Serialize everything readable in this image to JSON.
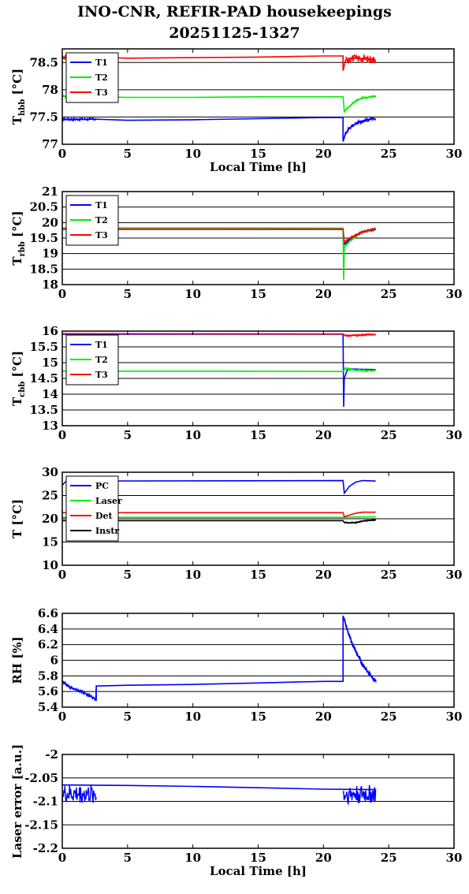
{
  "title": "INO-CNR, REFIR-PAD housekeepings",
  "subtitle": "20251125-1327",
  "chart_data": [
    {
      "type": "line",
      "ylabel": "T",
      "ylabel_sub": "hbb",
      "ylabel_unit": "[°C]",
      "xlabel": "Local Time [h]",
      "xlim": [
        0,
        30
      ],
      "ylim": [
        77,
        78.75
      ],
      "xticks": [
        0,
        5,
        10,
        15,
        20,
        25,
        30
      ],
      "yticks": [
        77,
        77.5,
        78,
        78.5
      ],
      "ytick_labels": [
        "77",
        "77.5",
        "78",
        "78.5"
      ],
      "grid": "y",
      "legend": "top-left",
      "series": [
        {
          "name": "T1",
          "color": "#0000ff",
          "points": [
            [
              0,
              77.46
            ],
            [
              2.6,
              77.46
            ],
            [
              5,
              77.44
            ],
            [
              10,
              77.45
            ],
            [
              15,
              77.47
            ],
            [
              20,
              77.49
            ],
            [
              21.5,
              77.49
            ],
            [
              21.5,
              77.05
            ],
            [
              21.7,
              77.2
            ],
            [
              22,
              77.3
            ],
            [
              22.5,
              77.38
            ],
            [
              23,
              77.43
            ],
            [
              23.5,
              77.46
            ],
            [
              24,
              77.47
            ]
          ],
          "noise": [
            [
              0,
              2.6,
              0.025
            ],
            [
              21.6,
              24,
              0.03
            ]
          ]
        },
        {
          "name": "T2",
          "color": "#00ee00",
          "points": [
            [
              0,
              77.88
            ],
            [
              2.6,
              77.87
            ],
            [
              5,
              77.86
            ],
            [
              10,
              77.86
            ],
            [
              15,
              77.87
            ],
            [
              20,
              77.87
            ],
            [
              21.5,
              77.87
            ],
            [
              21.6,
              77.6
            ],
            [
              22,
              77.7
            ],
            [
              22.5,
              77.8
            ],
            [
              23,
              77.85
            ],
            [
              24,
              77.88
            ]
          ],
          "noise": [
            [
              0,
              2.6,
              0.02
            ],
            [
              21.6,
              24,
              0.02
            ]
          ]
        },
        {
          "name": "T3",
          "color": "#ff0000",
          "points": [
            [
              0,
              78.6
            ],
            [
              2.6,
              78.6
            ],
            [
              5,
              78.58
            ],
            [
              10,
              78.59
            ],
            [
              15,
              78.6
            ],
            [
              20,
              78.62
            ],
            [
              21.5,
              78.62
            ],
            [
              21.5,
              78.35
            ],
            [
              21.7,
              78.55
            ],
            [
              22,
              78.58
            ],
            [
              23,
              78.57
            ],
            [
              24,
              78.55
            ]
          ],
          "noise": [
            [
              0,
              2.6,
              0.04
            ],
            [
              21.7,
              24,
              0.07
            ]
          ]
        }
      ]
    },
    {
      "type": "line",
      "ylabel": "T",
      "ylabel_sub": "rbb",
      "ylabel_unit": "[°C]",
      "xlabel": "",
      "xlim": [
        0,
        30
      ],
      "ylim": [
        18,
        21
      ],
      "xticks": [
        0,
        5,
        10,
        15,
        20,
        25,
        30
      ],
      "yticks": [
        18,
        18.5,
        19,
        19.5,
        20,
        20.5,
        21
      ],
      "ytick_labels": [
        "18",
        "18.5",
        "19",
        "19.5",
        "20",
        "20.5",
        "21"
      ],
      "grid": "y",
      "legend": "top-left",
      "series": [
        {
          "name": "T1",
          "color": "#0000ff",
          "points": [
            [
              0,
              19.78
            ],
            [
              21.5,
              19.78
            ],
            [
              21.6,
              19.3
            ],
            [
              22,
              19.45
            ],
            [
              22.5,
              19.6
            ],
            [
              23,
              19.7
            ],
            [
              24,
              19.78
            ]
          ],
          "noise": [
            [
              21.6,
              24,
              0.03
            ]
          ]
        },
        {
          "name": "T2",
          "color": "#00ee00",
          "points": [
            [
              0,
              19.83
            ],
            [
              12,
              19.83
            ],
            [
              21.5,
              19.82
            ],
            [
              21.55,
              18.15
            ],
            [
              21.6,
              19.2
            ],
            [
              22,
              19.4
            ],
            [
              22.5,
              19.55
            ],
            [
              23,
              19.7
            ],
            [
              24,
              19.82
            ]
          ],
          "noise": [
            [
              21.6,
              24,
              0.03
            ]
          ]
        },
        {
          "name": "T3",
          "color": "#ff0000",
          "points": [
            [
              0,
              19.79
            ],
            [
              21.5,
              19.79
            ],
            [
              21.6,
              19.35
            ],
            [
              22,
              19.5
            ],
            [
              22.5,
              19.6
            ],
            [
              23,
              19.7
            ],
            [
              24,
              19.8
            ]
          ],
          "noise": [
            [
              21.6,
              24,
              0.03
            ]
          ]
        }
      ]
    },
    {
      "type": "line",
      "ylabel": "T",
      "ylabel_sub": "cbb",
      "ylabel_unit": "[°C]",
      "xlabel": "",
      "xlim": [
        0,
        30
      ],
      "ylim": [
        13,
        16
      ],
      "xticks": [
        0,
        5,
        10,
        15,
        20,
        25,
        30
      ],
      "yticks": [
        13,
        13.5,
        14,
        14.5,
        15,
        15.5,
        16
      ],
      "ytick_labels": [
        "13",
        "13.5",
        "14",
        "14.5",
        "15",
        "15.5",
        "16"
      ],
      "grid": "y",
      "legend": "top-left",
      "series": [
        {
          "name": "T1",
          "color": "#0000ff",
          "points": [
            [
              0,
              15.9
            ],
            [
              21.5,
              15.9
            ],
            [
              21.55,
              13.6
            ],
            [
              21.6,
              14.5
            ],
            [
              21.8,
              14.75
            ],
            [
              22,
              14.8
            ],
            [
              24,
              14.78
            ]
          ],
          "noise": []
        },
        {
          "name": "T2",
          "color": "#00ee00",
          "points": [
            [
              0,
              14.73
            ],
            [
              12,
              14.73
            ],
            [
              21.5,
              14.72
            ],
            [
              21.7,
              14.82
            ],
            [
              22,
              14.78
            ],
            [
              23,
              14.75
            ],
            [
              24,
              14.75
            ]
          ],
          "noise": [
            [
              21.6,
              24,
              0.03
            ]
          ]
        },
        {
          "name": "T3",
          "color": "#ff0000",
          "points": [
            [
              0,
              15.92
            ],
            [
              21.5,
              15.91
            ],
            [
              21.7,
              15.85
            ],
            [
              22,
              15.86
            ],
            [
              23,
              15.88
            ],
            [
              24,
              15.9
            ]
          ],
          "noise": [
            [
              21.6,
              24,
              0.03
            ]
          ]
        }
      ]
    },
    {
      "type": "line",
      "ylabel": "T [°C]",
      "ylabel_sub": "",
      "ylabel_unit": "",
      "xlabel": "",
      "xlim": [
        0,
        30
      ],
      "ylim": [
        10,
        30
      ],
      "xticks": [
        0,
        5,
        10,
        15,
        20,
        25,
        30
      ],
      "yticks": [
        10,
        15,
        20,
        25,
        30
      ],
      "ytick_labels": [
        "10",
        "15",
        "20",
        "25",
        "30"
      ],
      "grid": "y",
      "legend": "top-left",
      "series": [
        {
          "name": "PC",
          "color": "#0000ff",
          "points": [
            [
              0,
              27.2
            ],
            [
              0.3,
              28.1
            ],
            [
              21.5,
              28.2
            ],
            [
              21.6,
              25.5
            ],
            [
              22,
              27.0
            ],
            [
              22.5,
              27.9
            ],
            [
              23,
              28.2
            ],
            [
              24,
              28.1
            ]
          ],
          "noise": []
        },
        {
          "name": "Laser",
          "color": "#00ee00",
          "points": [
            [
              0,
              20.3
            ],
            [
              21.5,
              20.3
            ],
            [
              22,
              20.35
            ],
            [
              24,
              20.4
            ]
          ],
          "noise": []
        },
        {
          "name": "Det",
          "color": "#ff0000",
          "points": [
            [
              0,
              21.3
            ],
            [
              21.5,
              21.3
            ],
            [
              21.6,
              20.4
            ],
            [
              22,
              20.8
            ],
            [
              22.5,
              21.2
            ],
            [
              23,
              21.4
            ],
            [
              24,
              21.4
            ]
          ],
          "noise": []
        },
        {
          "name": "Instr",
          "color": "#000000",
          "points": [
            [
              0,
              19.6
            ],
            [
              21.5,
              19.6
            ],
            [
              21.6,
              19.2
            ],
            [
              22,
              19.1
            ],
            [
              22.5,
              19.2
            ],
            [
              23,
              19.5
            ],
            [
              24,
              19.8
            ]
          ],
          "noise": [
            [
              21.6,
              24,
              0.15
            ]
          ]
        }
      ]
    },
    {
      "type": "line",
      "ylabel": "RH [%]",
      "ylabel_sub": "",
      "ylabel_unit": "",
      "xlabel": "",
      "xlim": [
        0,
        30
      ],
      "ylim": [
        5.4,
        6.6
      ],
      "xticks": [
        0,
        5,
        10,
        15,
        20,
        25,
        30
      ],
      "yticks": [
        5.4,
        5.6,
        5.8,
        6,
        6.2,
        6.4,
        6.6
      ],
      "ytick_labels": [
        "5.4",
        "5.6",
        "5.8",
        "6",
        "6.2",
        "6.4",
        "6.6"
      ],
      "grid": "y",
      "legend": "none",
      "series": [
        {
          "name": "",
          "color": "#0000ff",
          "points": [
            [
              0,
              5.73
            ],
            [
              0.5,
              5.66
            ],
            [
              1,
              5.63
            ],
            [
              1.5,
              5.6
            ],
            [
              2,
              5.55
            ],
            [
              2.6,
              5.5
            ],
            [
              2.6,
              5.48
            ],
            [
              2.6,
              5.67
            ],
            [
              5,
              5.68
            ],
            [
              10,
              5.69
            ],
            [
              15,
              5.71
            ],
            [
              20,
              5.73
            ],
            [
              21.5,
              5.73
            ],
            [
              21.5,
              6.57
            ],
            [
              22,
              6.3
            ],
            [
              22.5,
              6.1
            ],
            [
              23,
              5.95
            ],
            [
              23.5,
              5.83
            ],
            [
              24,
              5.73
            ],
            [
              24,
              5.75
            ]
          ],
          "noise": [
            [
              0,
              2.6,
              0.02
            ],
            [
              21.6,
              24,
              0.03
            ]
          ]
        }
      ]
    },
    {
      "type": "line",
      "ylabel": "Laser error [a.u.]",
      "ylabel_sub": "",
      "ylabel_unit": "",
      "xlabel": "Local Time [h]",
      "xlim": [
        0,
        30
      ],
      "ylim": [
        -2.2,
        -2
      ],
      "xticks": [
        0,
        5,
        10,
        15,
        20,
        25,
        30
      ],
      "yticks": [
        -2.2,
        -2.15,
        -2.1,
        -2.05,
        -2
      ],
      "ytick_labels": [
        "-2.2",
        "-2.15",
        "-2.1",
        "-2.05",
        "-2"
      ],
      "grid": "y",
      "legend": "none",
      "series": [
        {
          "name": "",
          "color": "#0000ff",
          "points": [
            [
              0,
              -2.065
            ],
            [
              5,
              -2.066
            ],
            [
              10,
              -2.068
            ],
            [
              15,
              -2.071
            ],
            [
              20,
              -2.074
            ],
            [
              24,
              -2.075
            ]
          ],
          "noise": [
            [
              0,
              2.6,
              0.02
            ],
            [
              21.5,
              24,
              0.02
            ]
          ],
          "noise_center": [
            [
              0,
              2.6,
              -2.085
            ],
            [
              21.5,
              24,
              -2.085
            ]
          ]
        }
      ]
    }
  ]
}
